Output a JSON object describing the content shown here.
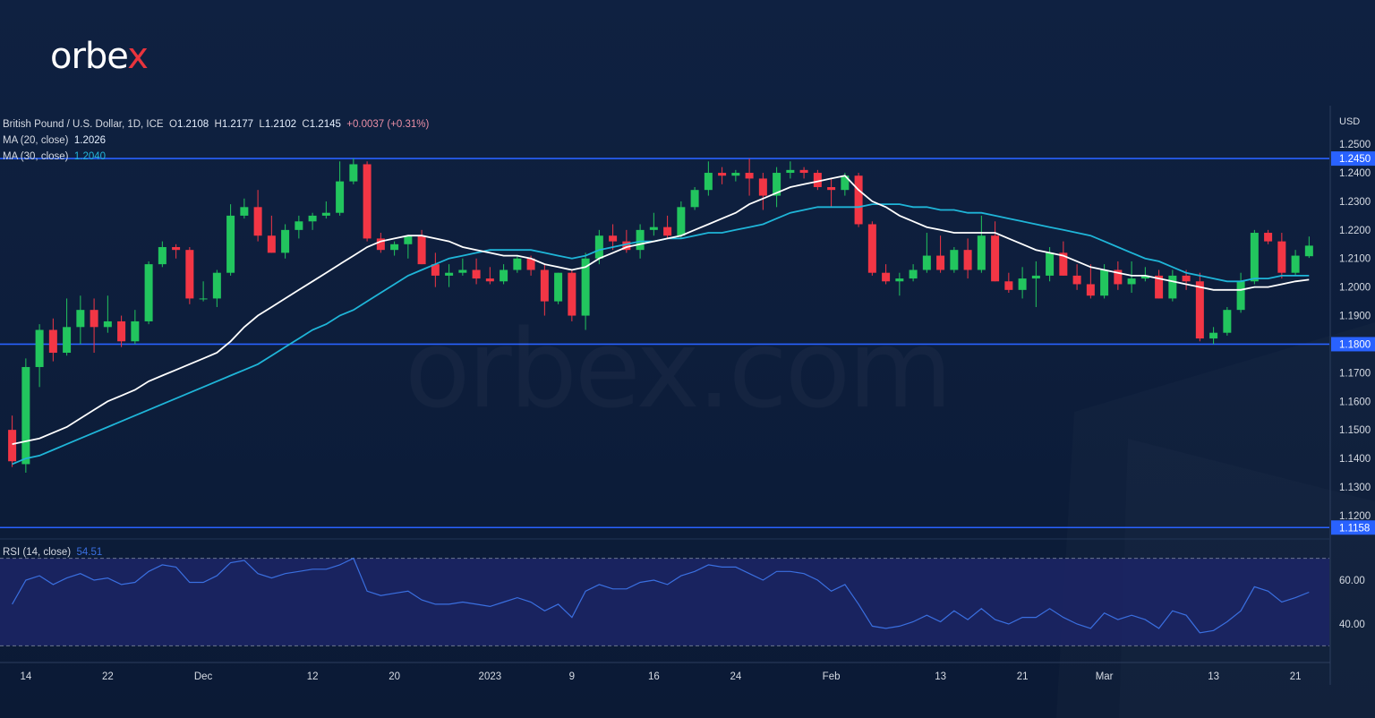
{
  "brand": {
    "name": "orbe",
    "accent": "x",
    "accent_color": "#e8343d"
  },
  "watermark": "orbex.com",
  "legend": {
    "symbol": "British Pound / U.S. Dollar, 1D, ICE",
    "open_label": "O",
    "open": "1.2108",
    "high_label": "H",
    "high": "1.2177",
    "low_label": "L",
    "low": "1.2102",
    "close_label": "C",
    "close": "1.2145",
    "change": "+0.0037 (+0.31%)",
    "ma20_label": "MA (20, close)",
    "ma20_value": "1.2026",
    "ma30_label": "MA (30, close)",
    "ma30_value": "1.2040"
  },
  "rsi_legend": {
    "label": "RSI (14, close)",
    "value": "54.51"
  },
  "chart_data": {
    "type": "candlestick",
    "currency": "USD",
    "y_ticks": [
      1.12,
      1.13,
      1.14,
      1.15,
      1.16,
      1.17,
      1.18,
      1.19,
      1.2,
      1.21,
      1.22,
      1.23,
      1.24,
      1.25
    ],
    "ylim": [
      1.114,
      1.256
    ],
    "horizontal_levels": [
      {
        "value": 1.245,
        "label": "1.2450"
      },
      {
        "value": 1.18,
        "label": "1.1800"
      },
      {
        "value": 1.1158,
        "label": "1.1158"
      }
    ],
    "x_labels": [
      "14",
      "22",
      "Dec",
      "12",
      "20",
      "2023",
      "9",
      "16",
      "24",
      "Feb",
      "13",
      "21",
      "Mar",
      "13",
      "21"
    ],
    "x_label_index": [
      1,
      7,
      14,
      22,
      28,
      35,
      41,
      47,
      53,
      60,
      68,
      74,
      80,
      88,
      94
    ],
    "candles": [
      [
        1.15,
        1.155,
        1.137,
        1.139
      ],
      [
        1.138,
        1.175,
        1.135,
        1.172
      ],
      [
        1.172,
        1.187,
        1.165,
        1.185
      ],
      [
        1.185,
        1.189,
        1.174,
        1.177
      ],
      [
        1.177,
        1.196,
        1.176,
        1.186
      ],
      [
        1.186,
        1.197,
        1.18,
        1.192
      ],
      [
        1.192,
        1.196,
        1.177,
        1.186
      ],
      [
        1.186,
        1.197,
        1.184,
        1.188
      ],
      [
        1.188,
        1.19,
        1.179,
        1.181
      ],
      [
        1.181,
        1.192,
        1.18,
        1.188
      ],
      [
        1.188,
        1.209,
        1.187,
        1.208
      ],
      [
        1.208,
        1.216,
        1.207,
        1.214
      ],
      [
        1.214,
        1.215,
        1.21,
        1.213
      ],
      [
        1.213,
        1.214,
        1.194,
        1.196
      ],
      [
        1.196,
        1.202,
        1.195,
        1.196
      ],
      [
        1.196,
        1.206,
        1.193,
        1.205
      ],
      [
        1.205,
        1.229,
        1.204,
        1.225
      ],
      [
        1.225,
        1.231,
        1.224,
        1.228
      ],
      [
        1.228,
        1.234,
        1.216,
        1.218
      ],
      [
        1.218,
        1.225,
        1.212,
        1.212
      ],
      [
        1.212,
        1.222,
        1.21,
        1.22
      ],
      [
        1.22,
        1.225,
        1.217,
        1.223
      ],
      [
        1.223,
        1.226,
        1.22,
        1.225
      ],
      [
        1.225,
        1.23,
        1.224,
        1.226
      ],
      [
        1.226,
        1.244,
        1.225,
        1.237
      ],
      [
        1.237,
        1.245,
        1.236,
        1.243
      ],
      [
        1.243,
        1.244,
        1.216,
        1.217
      ],
      [
        1.217,
        1.219,
        1.212,
        1.213
      ],
      [
        1.213,
        1.216,
        1.211,
        1.215
      ],
      [
        1.215,
        1.218,
        1.21,
        1.218
      ],
      [
        1.218,
        1.22,
        1.208,
        1.208
      ],
      [
        1.208,
        1.212,
        1.2,
        1.204
      ],
      [
        1.204,
        1.208,
        1.2,
        1.205
      ],
      [
        1.205,
        1.21,
        1.204,
        1.206
      ],
      [
        1.206,
        1.21,
        1.201,
        1.203
      ],
      [
        1.203,
        1.207,
        1.201,
        1.202
      ],
      [
        1.202,
        1.208,
        1.201,
        1.206
      ],
      [
        1.206,
        1.211,
        1.205,
        1.21
      ],
      [
        1.21,
        1.211,
        1.204,
        1.206
      ],
      [
        1.206,
        1.208,
        1.19,
        1.195
      ],
      [
        1.195,
        1.205,
        1.194,
        1.205
      ],
      [
        1.205,
        1.206,
        1.188,
        1.19
      ],
      [
        1.19,
        1.212,
        1.185,
        1.21
      ],
      [
        1.21,
        1.22,
        1.208,
        1.218
      ],
      [
        1.218,
        1.222,
        1.213,
        1.216
      ],
      [
        1.216,
        1.22,
        1.212,
        1.213
      ],
      [
        1.213,
        1.222,
        1.21,
        1.22
      ],
      [
        1.22,
        1.226,
        1.218,
        1.221
      ],
      [
        1.221,
        1.225,
        1.217,
        1.218
      ],
      [
        1.218,
        1.23,
        1.217,
        1.228
      ],
      [
        1.228,
        1.235,
        1.227,
        1.234
      ],
      [
        1.234,
        1.244,
        1.232,
        1.24
      ],
      [
        1.24,
        1.242,
        1.236,
        1.239
      ],
      [
        1.239,
        1.241,
        1.237,
        1.24
      ],
      [
        1.24,
        1.245,
        1.232,
        1.238
      ],
      [
        1.238,
        1.24,
        1.227,
        1.232
      ],
      [
        1.232,
        1.242,
        1.228,
        1.24
      ],
      [
        1.24,
        1.244,
        1.238,
        1.241
      ],
      [
        1.241,
        1.242,
        1.238,
        1.24
      ],
      [
        1.24,
        1.241,
        1.234,
        1.235
      ],
      [
        1.235,
        1.238,
        1.228,
        1.234
      ],
      [
        1.234,
        1.24,
        1.232,
        1.239
      ],
      [
        1.239,
        1.24,
        1.221,
        1.222
      ],
      [
        1.222,
        1.223,
        1.204,
        1.205
      ],
      [
        1.205,
        1.208,
        1.201,
        1.202
      ],
      [
        1.202,
        1.205,
        1.197,
        1.203
      ],
      [
        1.203,
        1.208,
        1.202,
        1.206
      ],
      [
        1.206,
        1.219,
        1.205,
        1.211
      ],
      [
        1.211,
        1.218,
        1.205,
        1.206
      ],
      [
        1.206,
        1.214,
        1.205,
        1.213
      ],
      [
        1.213,
        1.217,
        1.203,
        1.206
      ],
      [
        1.206,
        1.225,
        1.205,
        1.218
      ],
      [
        1.218,
        1.223,
        1.202,
        1.202
      ],
      [
        1.202,
        1.205,
        1.198,
        1.199
      ],
      [
        1.199,
        1.207,
        1.196,
        1.203
      ],
      [
        1.203,
        1.209,
        1.193,
        1.204
      ],
      [
        1.204,
        1.214,
        1.202,
        1.212
      ],
      [
        1.212,
        1.216,
        1.204,
        1.204
      ],
      [
        1.204,
        1.208,
        1.199,
        1.201
      ],
      [
        1.201,
        1.208,
        1.196,
        1.197
      ],
      [
        1.197,
        1.208,
        1.196,
        1.206
      ],
      [
        1.206,
        1.209,
        1.199,
        1.201
      ],
      [
        1.201,
        1.209,
        1.198,
        1.203
      ],
      [
        1.203,
        1.207,
        1.202,
        1.204
      ],
      [
        1.204,
        1.206,
        1.196,
        1.196
      ],
      [
        1.196,
        1.206,
        1.195,
        1.204
      ],
      [
        1.204,
        1.206,
        1.199,
        1.202
      ],
      [
        1.202,
        1.205,
        1.181,
        1.182
      ],
      [
        1.182,
        1.186,
        1.18,
        1.184
      ],
      [
        1.184,
        1.193,
        1.183,
        1.192
      ],
      [
        1.192,
        1.205,
        1.191,
        1.202
      ],
      [
        1.202,
        1.22,
        1.201,
        1.219
      ],
      [
        1.219,
        1.22,
        1.215,
        1.216
      ],
      [
        1.216,
        1.219,
        1.203,
        1.205
      ],
      [
        1.205,
        1.213,
        1.204,
        1.211
      ],
      [
        1.2108,
        1.2177,
        1.2102,
        1.2145
      ]
    ],
    "ma20": [
      1.145,
      1.146,
      1.147,
      1.149,
      1.151,
      1.154,
      1.157,
      1.16,
      1.162,
      1.164,
      1.167,
      1.169,
      1.171,
      1.173,
      1.175,
      1.177,
      1.181,
      1.186,
      1.19,
      1.193,
      1.196,
      1.199,
      1.202,
      1.205,
      1.208,
      1.211,
      1.214,
      1.216,
      1.217,
      1.218,
      1.218,
      1.217,
      1.216,
      1.214,
      1.213,
      1.212,
      1.211,
      1.211,
      1.21,
      1.208,
      1.207,
      1.206,
      1.207,
      1.21,
      1.212,
      1.214,
      1.215,
      1.216,
      1.217,
      1.218,
      1.22,
      1.222,
      1.224,
      1.226,
      1.229,
      1.231,
      1.233,
      1.235,
      1.236,
      1.237,
      1.238,
      1.239,
      1.234,
      1.23,
      1.228,
      1.225,
      1.223,
      1.221,
      1.22,
      1.219,
      1.219,
      1.219,
      1.219,
      1.217,
      1.215,
      1.213,
      1.212,
      1.211,
      1.209,
      1.207,
      1.206,
      1.205,
      1.204,
      1.204,
      1.203,
      1.202,
      1.201,
      1.2,
      1.199,
      1.199,
      1.199,
      1.2,
      1.2,
      1.201,
      1.202,
      1.2026
    ],
    "ma30": [
      1.138,
      1.14,
      1.141,
      1.143,
      1.145,
      1.147,
      1.149,
      1.151,
      1.153,
      1.155,
      1.157,
      1.159,
      1.161,
      1.163,
      1.165,
      1.167,
      1.169,
      1.171,
      1.173,
      1.176,
      1.179,
      1.182,
      1.185,
      1.187,
      1.19,
      1.192,
      1.195,
      1.198,
      1.201,
      1.204,
      1.206,
      1.208,
      1.21,
      1.211,
      1.212,
      1.213,
      1.213,
      1.213,
      1.213,
      1.212,
      1.211,
      1.21,
      1.211,
      1.213,
      1.214,
      1.215,
      1.216,
      1.216,
      1.217,
      1.217,
      1.218,
      1.219,
      1.219,
      1.22,
      1.221,
      1.222,
      1.224,
      1.226,
      1.227,
      1.228,
      1.228,
      1.228,
      1.228,
      1.229,
      1.229,
      1.229,
      1.228,
      1.228,
      1.227,
      1.227,
      1.226,
      1.226,
      1.225,
      1.224,
      1.223,
      1.222,
      1.221,
      1.22,
      1.219,
      1.218,
      1.216,
      1.214,
      1.212,
      1.21,
      1.209,
      1.207,
      1.205,
      1.204,
      1.203,
      1.202,
      1.202,
      1.203,
      1.203,
      1.204,
      1.204,
      1.204
    ],
    "rsi": {
      "ylim": [
        22,
        78
      ],
      "y_ticks": [
        40,
        60
      ],
      "upper": 70,
      "lower": 30,
      "values": [
        49,
        60,
        62,
        58,
        61,
        63,
        60,
        61,
        58,
        59,
        64,
        67,
        66,
        59,
        59,
        62,
        68,
        69,
        63,
        61,
        63,
        64,
        65,
        65,
        67,
        70,
        55,
        53,
        54,
        55,
        51,
        49,
        49,
        50,
        49,
        48,
        50,
        52,
        50,
        46,
        49,
        43,
        55,
        58,
        56,
        56,
        59,
        60,
        58,
        62,
        64,
        67,
        66,
        66,
        63,
        60,
        64,
        64,
        63,
        60,
        55,
        58,
        49,
        39,
        38,
        39,
        41,
        44,
        41,
        46,
        42,
        47,
        42,
        40,
        43,
        43,
        47,
        43,
        40,
        38,
        45,
        42,
        44,
        42,
        38,
        46,
        44,
        36,
        37,
        41,
        46,
        57,
        55,
        50,
        52,
        54.51
      ]
    }
  }
}
